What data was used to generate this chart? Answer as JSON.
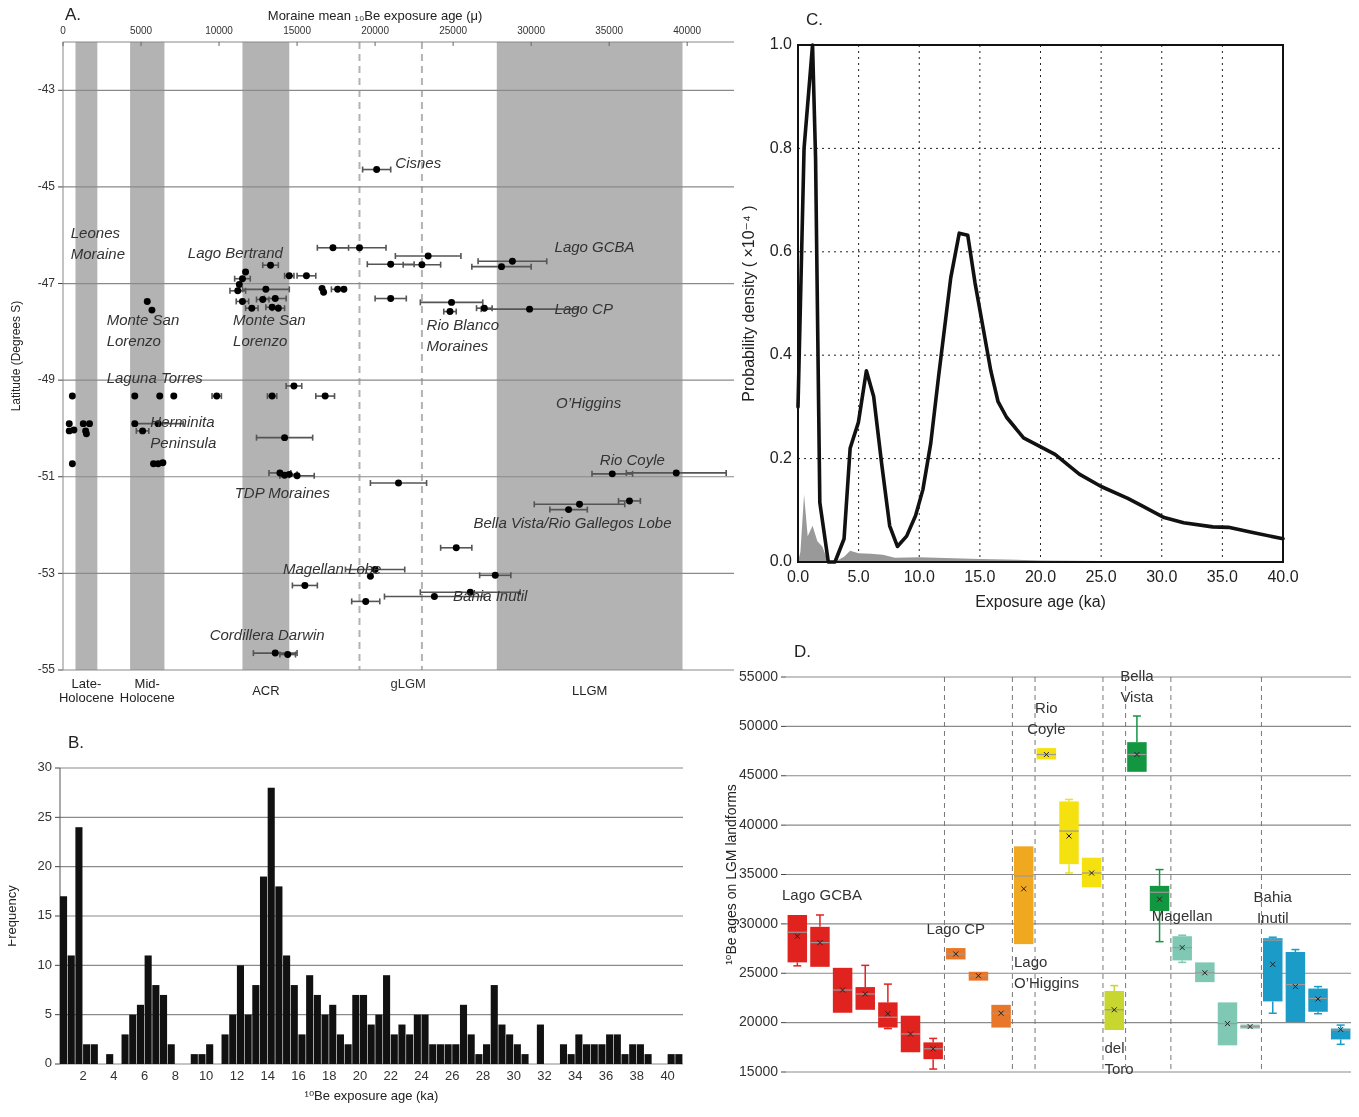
{
  "chart_data": [
    {
      "type": "scatter",
      "title": "A.",
      "xlabel": "Moraine mean ₁₀Be exposure age (μ)",
      "ylabel": "Latitude (Degrees S)",
      "xlim": [
        0,
        43000
      ],
      "ylim": [
        -55,
        -42
      ],
      "xticks": [
        0,
        5000,
        10000,
        15000,
        20000,
        25000,
        30000,
        35000,
        40000
      ],
      "yticks": [
        -43,
        -45,
        -47,
        -49,
        -51,
        -53,
        -55
      ],
      "grid": "y",
      "marker": "circle",
      "bands": [
        {
          "axis": "x",
          "from": 800,
          "to": 2200,
          "label": "Late-\nHolocene",
          "color": "#b3b3b3"
        },
        {
          "axis": "x",
          "from": 4300,
          "to": 6500,
          "label": "Mid-\nHolocene",
          "color": "#b3b3b3"
        },
        {
          "axis": "x",
          "from": 11500,
          "to": 14500,
          "label": "ACR",
          "color": "#b3b3b3"
        },
        {
          "axis": "x",
          "from": 27800,
          "to": 39700,
          "label": "LLGM",
          "color": "#b3b3b3"
        }
      ],
      "ref_lines": [
        {
          "axis": "x",
          "value": 19000,
          "color": "#b3b3b3",
          "line_style": "dashed"
        },
        {
          "axis": "x",
          "value": 23000,
          "color": "#b3b3b3",
          "line_style": "dashed"
        }
      ],
      "annotations": [
        "Cisnes",
        "Leones\nMoraine",
        "Lago Bertrand",
        "Lago GCBA",
        "Monte San\nLorenzo",
        "Monte San\nLorenzo",
        "Lago CP",
        "Rio Blanco\nMoraines",
        "Laguna Torres",
        "Herminita\nPeninsula",
        "O’Higgins",
        "Rio Coyle",
        "TDP Moraines",
        "Bella Vista/Rio Gallegos Lobe",
        "Magellan Lobe",
        "Bahia Inutil",
        "Cordillera Darwin",
        "gLGM"
      ],
      "series": [
        {
          "type": "scatter",
          "color": "#000000",
          "x": [
            20100,
            17300,
            19000,
            23400,
            28800,
            21000,
            23000,
            28100,
            13300,
            11700,
            14500,
            15600,
            11500,
            11300,
            11200,
            13000,
            16600,
            16700,
            17600,
            18000,
            12800,
            13600,
            11500,
            12100,
            13400,
            13800,
            21000,
            24900,
            24800,
            27000,
            29900,
            5400,
            5700,
            600,
            400,
            400,
            700,
            600,
            1300,
            1700,
            1450,
            1500,
            4600,
            6200,
            7100,
            9850,
            4600,
            6100,
            5100,
            5800,
            6100,
            6400,
            13400,
            14800,
            16800,
            14200,
            13900,
            14200,
            14500,
            15000,
            21500,
            35200,
            39300,
            33100,
            36300,
            32400,
            25200,
            20000,
            19700,
            27700,
            15500,
            26100,
            23800,
            19400,
            13600,
            14400
          ],
          "values": [
            -44.64,
            -46.26,
            -46.26,
            -46.43,
            -46.54,
            -46.6,
            -46.61,
            -46.65,
            -46.62,
            -46.76,
            -46.84,
            -46.84,
            -46.9,
            -47.02,
            -47.15,
            -47.12,
            -47.1,
            -47.18,
            -47.12,
            -47.12,
            -47.33,
            -47.31,
            -47.37,
            -47.51,
            -47.49,
            -47.51,
            -47.31,
            -47.39,
            -47.58,
            -47.51,
            -47.53,
            -47.37,
            -47.55,
            -49.33,
            -49.9,
            -50.05,
            -50.03,
            -50.73,
            -49.9,
            -49.9,
            -50.05,
            -50.11,
            -49.33,
            -49.33,
            -49.33,
            -49.33,
            -49.9,
            -49.9,
            -50.05,
            -50.73,
            -50.73,
            -50.71,
            -49.33,
            -49.12,
            -49.33,
            -50.19,
            -50.92,
            -50.97,
            -50.95,
            -50.98,
            -51.13,
            -50.94,
            -50.92,
            -51.57,
            -51.5,
            -51.68,
            -52.47,
            -52.92,
            -53.06,
            -53.04,
            -53.25,
            -53.39,
            -53.48,
            -53.58,
            -54.65,
            -54.68
          ],
          "xerrors": [
            900,
            1000,
            1700,
            2100,
            2200,
            1500,
            1200,
            1900,
            500,
            null,
            300,
            600,
            500,
            null,
            500,
            1500,
            null,
            null,
            400,
            null,
            400,
            700,
            400,
            400,
            400,
            400,
            1000,
            2000,
            400,
            500,
            3100,
            null,
            null,
            null,
            null,
            null,
            null,
            null,
            null,
            null,
            null,
            null,
            null,
            null,
            null,
            300,
            null,
            1600,
            400,
            null,
            null,
            null,
            300,
            500,
            600,
            1800,
            700,
            300,
            500,
            1100,
            1800,
            1300,
            3200,
            2900,
            700,
            1200,
            1000,
            1900,
            null,
            1000,
            800,
            3200,
            3200,
            900,
            1400,
            500
          ]
        }
      ]
    },
    {
      "type": "histogram",
      "title": "B.",
      "xlabel": "¹⁰Be exposure age (ka)",
      "ylabel": "Frequency",
      "xlim": [
        0.5,
        41
      ],
      "ylim": [
        0,
        30
      ],
      "xticks": [
        2,
        4,
        6,
        8,
        10,
        12,
        14,
        16,
        18,
        20,
        22,
        24,
        26,
        28,
        30,
        32,
        34,
        36,
        38,
        40
      ],
      "yticks": [
        0,
        5,
        10,
        15,
        20,
        25,
        30
      ],
      "grid": "y",
      "color": "#111111",
      "bins": [
        0.5,
        1,
        1.5,
        2,
        2.5,
        3,
        3.5,
        4,
        4.5,
        5,
        5.5,
        6,
        6.5,
        7,
        7.5,
        8,
        8.5,
        9,
        9.5,
        10,
        10.5,
        11,
        11.5,
        12,
        12.5,
        13,
        13.5,
        14,
        14.5,
        15,
        15.5,
        16,
        16.5,
        17,
        17.5,
        18,
        18.5,
        19,
        19.5,
        20,
        20.5,
        21,
        21.5,
        22,
        22.5,
        23,
        23.5,
        24,
        24.5,
        25,
        25.5,
        26,
        26.5,
        27,
        27.5,
        28,
        28.5,
        29,
        29.5,
        30,
        30.5,
        31,
        31.5,
        32,
        32.5,
        33,
        33.5,
        34,
        34.5,
        35,
        35.5,
        36,
        36.5,
        37,
        37.5,
        38,
        38.5,
        39,
        39.5,
        40,
        40.5,
        41
      ],
      "values": [
        17,
        11,
        24,
        2,
        2,
        0,
        1,
        0,
        3,
        5,
        6,
        11,
        8,
        7,
        2,
        0,
        0,
        1,
        1,
        2,
        0,
        3,
        5,
        10,
        5,
        8,
        19,
        28,
        18,
        11,
        8,
        3,
        9,
        7,
        5,
        6,
        3,
        2,
        7,
        7,
        4,
        5,
        9,
        3,
        4,
        3,
        5,
        5,
        2,
        2,
        2,
        2,
        6,
        3,
        1,
        2,
        8,
        4,
        3,
        2,
        1,
        0,
        4,
        0,
        0,
        2,
        1,
        3,
        2,
        2,
        2,
        3,
        3,
        1,
        2,
        2,
        1,
        0,
        0,
        1,
        1
      ]
    },
    {
      "type": "line",
      "title": "C.",
      "xlabel": "Exposure age (ka)",
      "ylabel": "Probability density ( ×10⁻⁴ )",
      "xlim": [
        0,
        40
      ],
      "ylim": [
        0,
        1
      ],
      "grid": true,
      "line_style": "solid",
      "xticks": [
        {
          "value": 0,
          "label": "0.0"
        },
        {
          "value": 5,
          "label": "5.0"
        },
        {
          "value": 10,
          "label": "10.0"
        },
        {
          "value": 15,
          "label": "15.0"
        },
        {
          "value": 20,
          "label": "20.0"
        },
        {
          "value": 25,
          "label": "25.0"
        },
        {
          "value": 30,
          "label": "30.0"
        },
        {
          "value": 35,
          "label": "35.0"
        },
        {
          "value": 40,
          "label": "40.0"
        }
      ],
      "yticks": [
        {
          "value": 0,
          "label": "0.0"
        },
        {
          "value": 0.2,
          "label": "0.2"
        },
        {
          "value": 0.4,
          "label": "0.4"
        },
        {
          "value": 0.6,
          "label": "0.6"
        },
        {
          "value": 0.8,
          "label": "0.8"
        },
        {
          "value": 1,
          "label": "1.0"
        }
      ],
      "series": [
        {
          "type": "area",
          "color": "#999999",
          "x": [
            0,
            0.2,
            0.5,
            0.8,
            1.2,
            1.6,
            2,
            2.5,
            3,
            3.8,
            4.3,
            5,
            6,
            7,
            8,
            10,
            15,
            20,
            30,
            40
          ],
          "values": [
            0,
            0.02,
            0.13,
            0.05,
            0.07,
            0.04,
            0.03,
            0,
            0,
            0.01,
            0.022,
            0.017,
            0.016,
            0.014,
            0.008,
            0.009,
            0.006,
            0.003,
            0.001,
            0
          ]
        },
        {
          "type": "line",
          "color": "#111111",
          "x": [
            0,
            0.5,
            1.2,
            1.45,
            1.8,
            2.5,
            3.05,
            3.8,
            4.3,
            4.98,
            5.64,
            6.24,
            6.9,
            7.56,
            8.2,
            8.96,
            9.7,
            10.3,
            10.95,
            11.6,
            12.6,
            13.3,
            14,
            14.6,
            15.9,
            16.5,
            17.2,
            18.6,
            19.9,
            21.2,
            23.2,
            25,
            27.2,
            28.5,
            30.2,
            31.8,
            34.2,
            35.5,
            37.5,
            40
          ],
          "values": [
            0.3,
            0.8,
            1,
            0.78,
            0.115,
            0,
            0,
            0.045,
            0.22,
            0.27,
            0.37,
            0.32,
            0.19,
            0.07,
            0.03,
            0.05,
            0.09,
            0.14,
            0.23,
            0.36,
            0.55,
            0.636,
            0.632,
            0.54,
            0.37,
            0.31,
            0.28,
            0.24,
            0.224,
            0.208,
            0.17,
            0.146,
            0.123,
            0.107,
            0.086,
            0.076,
            0.068,
            0.067,
            0.057,
            0.045
          ]
        }
      ]
    },
    {
      "type": "box",
      "title": "D.",
      "ylabel": "¹⁰Be ages on LGM landforms",
      "ylim": [
        15000,
        55000
      ],
      "yticks": [
        15000,
        20000,
        25000,
        30000,
        35000,
        40000,
        45000,
        50000,
        55000
      ],
      "grid": "y",
      "categories": [
        null,
        null,
        null,
        null,
        null,
        null,
        null,
        null,
        null,
        null,
        null,
        null,
        null,
        null,
        null,
        null,
        null,
        null,
        null,
        null,
        null,
        null,
        null,
        null,
        null
      ],
      "series": [
        {
          "name": "Lago GCBA",
          "color": "#e0231e",
          "boxes": [
            {
              "low": 25750,
              "q1": 26100,
              "median": 29150,
              "q3": 30900,
              "high": 30900,
              "mean": 28750
            },
            {
              "low": 25650,
              "q1": 25650,
              "median": 28100,
              "q3": 29700,
              "high": 30900,
              "mean": 28100
            },
            {
              "low": 21000,
              "q1": 21000,
              "median": 23300,
              "q3": 25550,
              "high": 25550,
              "mean": 23300
            },
            {
              "low": 21300,
              "q1": 21300,
              "median": 22900,
              "q3": 23600,
              "high": 25800,
              "mean": 22900
            },
            {
              "low": 19400,
              "q1": 19500,
              "median": 20550,
              "q3": 22050,
              "high": 23900,
              "mean": 20900
            },
            {
              "low": 17000,
              "q1": 17000,
              "median": 18850,
              "q3": 20700,
              "high": 20700,
              "mean": 18850
            },
            {
              "low": 15300,
              "q1": 16300,
              "median": 17350,
              "q3": 18000,
              "high": 18400,
              "mean": 17350
            },
            null,
            null,
            null,
            null,
            null,
            null,
            null,
            null,
            null,
            null,
            null,
            null,
            null,
            null,
            null,
            null,
            null,
            null
          ]
        },
        {
          "name": "Lago CP",
          "color": "#e8772a",
          "boxes": [
            null,
            null,
            null,
            null,
            null,
            null,
            null,
            {
              "low": 26400,
              "q1": 26400,
              "median": 26950,
              "q3": 27550,
              "high": 27550,
              "mean": 26950
            },
            {
              "low": 24250,
              "q1": 24250,
              "median": 24750,
              "q3": 25150,
              "high": 25150,
              "mean": 24750
            },
            {
              "low": 19500,
              "q1": 19500,
              "median": 20950,
              "q3": 21800,
              "high": 21800,
              "mean": 20950
            },
            null,
            null,
            null,
            null,
            null,
            null,
            null,
            null,
            null,
            null,
            null,
            null,
            null,
            null,
            null
          ]
        },
        {
          "name": "Lago\nO’Higgins",
          "color": "#f0a820",
          "boxes": [
            null,
            null,
            null,
            null,
            null,
            null,
            null,
            null,
            null,
            null,
            {
              "low": 27950,
              "q1": 27950,
              "median": 34850,
              "q3": 37850,
              "high": 37850,
              "mean": 33550
            },
            null,
            null,
            null,
            null,
            null,
            null,
            null,
            null,
            null,
            null,
            null,
            null,
            null,
            null
          ]
        },
        {
          "name": "Rio\nCoyle",
          "color": "#f5e010",
          "boxes": [
            null,
            null,
            null,
            null,
            null,
            null,
            null,
            null,
            null,
            null,
            null,
            {
              "low": 46650,
              "q1": 46650,
              "median": 47150,
              "q3": 47800,
              "high": 47800,
              "mean": 47150
            },
            {
              "low": 35150,
              "q1": 36050,
              "median": 39400,
              "q3": 42400,
              "high": 42600,
              "mean": 38900
            },
            {
              "low": 33700,
              "q1": 33700,
              "median": 35150,
              "q3": 36700,
              "high": 36700,
              "mean": 35150
            },
            null,
            null,
            null,
            null,
            null,
            null,
            null,
            null,
            null,
            null,
            null
          ]
        },
        {
          "name": "del\nToro",
          "color": "#c8d630",
          "boxes": [
            null,
            null,
            null,
            null,
            null,
            null,
            null,
            null,
            null,
            null,
            null,
            null,
            null,
            null,
            {
              "low": 19250,
              "q1": 19250,
              "median": 21300,
              "q3": 23200,
              "high": 23750,
              "mean": 21300
            },
            null,
            null,
            null,
            null,
            null,
            null,
            null,
            null,
            null,
            null
          ]
        },
        {
          "name": "Bella\nVista",
          "color": "#129640",
          "boxes": [
            null,
            null,
            null,
            null,
            null,
            null,
            null,
            null,
            null,
            null,
            null,
            null,
            null,
            null,
            null,
            {
              "low": 45400,
              "q1": 45400,
              "median": 47150,
              "q3": 48400,
              "high": 51050,
              "mean": 47150
            },
            {
              "low": 28200,
              "q1": 31300,
              "median": 33200,
              "q3": 33850,
              "high": 35500,
              "mean": 32500
            },
            null,
            null,
            null,
            null,
            null,
            null,
            null,
            null
          ]
        },
        {
          "name": "Magellan",
          "color": "#7fc8b4",
          "boxes": [
            null,
            null,
            null,
            null,
            null,
            null,
            null,
            null,
            null,
            null,
            null,
            null,
            null,
            null,
            null,
            null,
            null,
            {
              "low": 26100,
              "q1": 26300,
              "median": 27600,
              "q3": 28750,
              "high": 28850,
              "mean": 27600
            },
            {
              "low": 24100,
              "q1": 24100,
              "median": 25050,
              "q3": 26100,
              "high": 26100,
              "mean": 25050
            },
            {
              "low": 17700,
              "q1": 17700,
              "median": 19900,
              "q3": 22050,
              "high": 22050,
              "mean": 19900
            },
            {
              "low": 19400,
              "q1": 19400,
              "median": 19600,
              "q3": 19800,
              "high": 19800,
              "mean": 19600
            },
            null,
            null,
            null,
            null
          ]
        },
        {
          "name": "Bahia\nInutil",
          "color": "#1a9bc8",
          "boxes": [
            null,
            null,
            null,
            null,
            null,
            null,
            null,
            null,
            null,
            null,
            null,
            null,
            null,
            null,
            null,
            null,
            null,
            null,
            null,
            null,
            null,
            {
              "low": 20950,
              "q1": 22150,
              "median": 28350,
              "q3": 28550,
              "high": 28650,
              "mean": 25900
            },
            {
              "low": 20050,
              "q1": 20050,
              "median": 23850,
              "q3": 27150,
              "high": 27400,
              "mean": 23650
            },
            {
              "low": 20900,
              "q1": 21100,
              "median": 22450,
              "q3": 23450,
              "high": 23650,
              "mean": 22400
            },
            {
              "low": 17800,
              "q1": 18300,
              "median": 19250,
              "q3": 19400,
              "high": 19750,
              "mean": 19300
            }
          ]
        }
      ]
    }
  ]
}
